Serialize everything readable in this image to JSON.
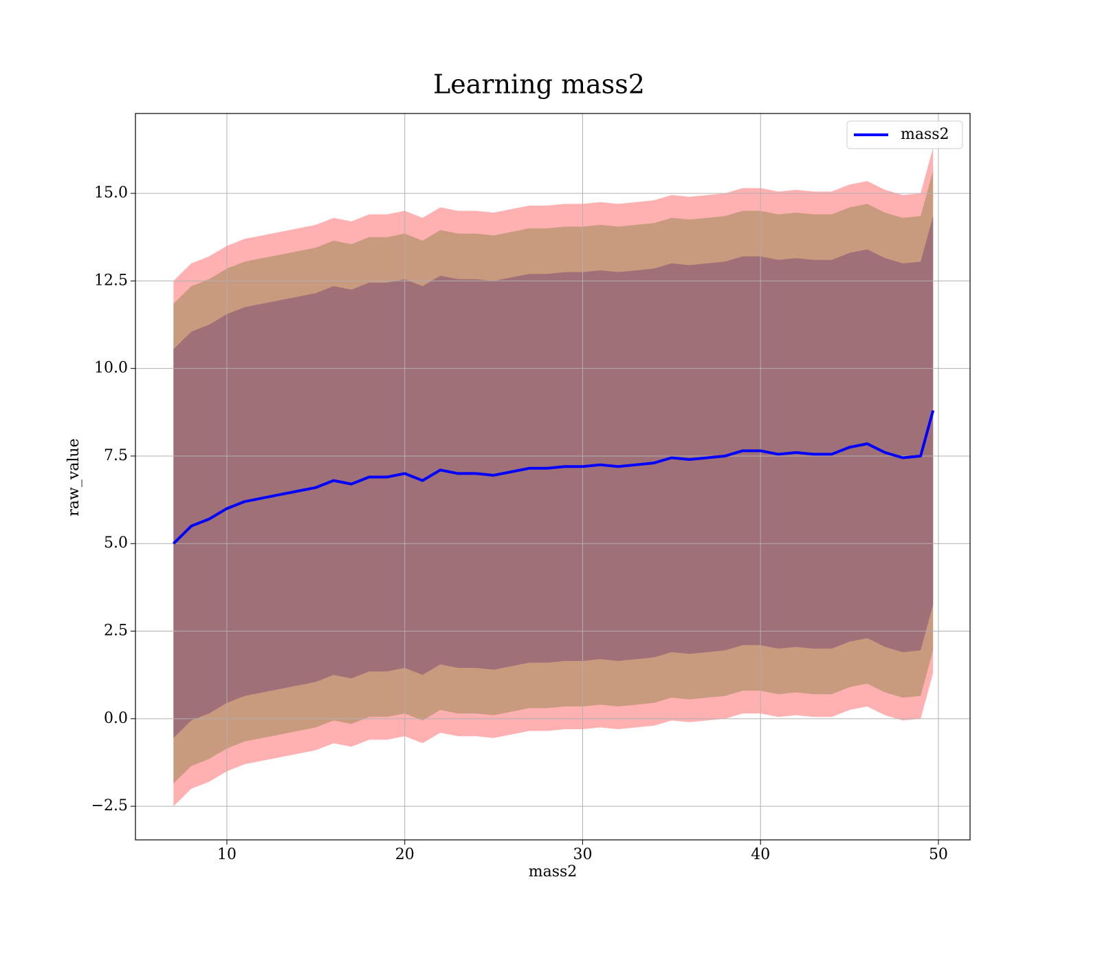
{
  "chart_data": {
    "type": "line",
    "title": "Learning mass2",
    "xlabel": "mass2",
    "ylabel": "raw_value",
    "x": [
      7,
      8,
      9,
      10,
      11,
      12,
      13,
      14,
      15,
      16,
      17,
      18,
      19,
      20,
      21,
      22,
      23,
      24,
      25,
      26,
      27,
      28,
      29,
      30,
      31,
      32,
      33,
      34,
      35,
      36,
      37,
      38,
      39,
      40,
      41,
      42,
      43,
      44,
      45,
      46,
      47,
      48,
      49,
      49.7
    ],
    "series": [
      {
        "name": "mass2",
        "color": "#0000ff",
        "values": [
          5.0,
          5.5,
          5.7,
          6.0,
          6.2,
          6.3,
          6.4,
          6.5,
          6.6,
          6.8,
          6.7,
          6.9,
          6.9,
          7.0,
          6.8,
          7.1,
          7.0,
          7.0,
          6.95,
          7.05,
          7.15,
          7.15,
          7.2,
          7.2,
          7.25,
          7.2,
          7.25,
          7.3,
          7.45,
          7.4,
          7.45,
          7.5,
          7.65,
          7.65,
          7.55,
          7.6,
          7.55,
          7.55,
          7.75,
          7.85,
          7.6,
          7.45,
          7.5,
          8.8
        ]
      }
    ],
    "bands": [
      {
        "color": "#ffb0b0",
        "upper": [
          12.5,
          13.0,
          13.2,
          13.5,
          13.7,
          13.8,
          13.9,
          14.0,
          14.1,
          14.3,
          14.2,
          14.4,
          14.4,
          14.5,
          14.3,
          14.6,
          14.5,
          14.5,
          14.45,
          14.55,
          14.65,
          14.65,
          14.7,
          14.7,
          14.75,
          14.7,
          14.75,
          14.8,
          14.95,
          14.9,
          14.95,
          15.0,
          15.15,
          15.15,
          15.05,
          15.1,
          15.05,
          15.05,
          15.25,
          15.35,
          15.1,
          14.95,
          15.0,
          16.3
        ],
        "lower": [
          -2.5,
          -2.0,
          -1.8,
          -1.5,
          -1.3,
          -1.2,
          -1.1,
          -1.0,
          -0.9,
          -0.7,
          -0.8,
          -0.6,
          -0.6,
          -0.5,
          -0.7,
          -0.4,
          -0.5,
          -0.5,
          -0.55,
          -0.45,
          -0.35,
          -0.35,
          -0.3,
          -0.3,
          -0.25,
          -0.3,
          -0.25,
          -0.2,
          -0.05,
          -0.1,
          -0.05,
          0.0,
          0.15,
          0.15,
          0.05,
          0.1,
          0.05,
          0.05,
          0.25,
          0.35,
          0.1,
          -0.05,
          0.0,
          1.3
        ]
      },
      {
        "color": "#c89a7e",
        "upper": [
          11.85,
          12.35,
          12.55,
          12.85,
          13.05,
          13.15,
          13.25,
          13.35,
          13.45,
          13.65,
          13.55,
          13.75,
          13.75,
          13.85,
          13.65,
          13.95,
          13.85,
          13.85,
          13.8,
          13.9,
          14.0,
          14.0,
          14.05,
          14.05,
          14.1,
          14.05,
          14.1,
          14.15,
          14.3,
          14.25,
          14.3,
          14.35,
          14.5,
          14.5,
          14.4,
          14.45,
          14.4,
          14.4,
          14.6,
          14.7,
          14.45,
          14.3,
          14.35,
          15.65
        ],
        "lower": [
          -1.85,
          -1.35,
          -1.15,
          -0.85,
          -0.65,
          -0.55,
          -0.45,
          -0.35,
          -0.25,
          -0.05,
          -0.15,
          0.05,
          0.05,
          0.15,
          -0.05,
          0.25,
          0.15,
          0.15,
          0.1,
          0.2,
          0.3,
          0.3,
          0.35,
          0.35,
          0.4,
          0.35,
          0.4,
          0.45,
          0.6,
          0.55,
          0.6,
          0.65,
          0.8,
          0.8,
          0.7,
          0.75,
          0.7,
          0.7,
          0.9,
          1.0,
          0.75,
          0.6,
          0.65,
          1.95
        ]
      },
      {
        "color": "#a07078",
        "upper": [
          10.55,
          11.05,
          11.25,
          11.55,
          11.75,
          11.85,
          11.95,
          12.05,
          12.15,
          12.35,
          12.25,
          12.45,
          12.45,
          12.55,
          12.35,
          12.65,
          12.55,
          12.55,
          12.5,
          12.6,
          12.7,
          12.7,
          12.75,
          12.75,
          12.8,
          12.75,
          12.8,
          12.85,
          13.0,
          12.95,
          13.0,
          13.05,
          13.2,
          13.2,
          13.1,
          13.15,
          13.1,
          13.1,
          13.3,
          13.4,
          13.15,
          13.0,
          13.05,
          14.35
        ],
        "lower": [
          -0.55,
          -0.05,
          0.15,
          0.45,
          0.65,
          0.75,
          0.85,
          0.95,
          1.05,
          1.25,
          1.15,
          1.35,
          1.35,
          1.45,
          1.25,
          1.55,
          1.45,
          1.45,
          1.4,
          1.5,
          1.6,
          1.6,
          1.65,
          1.65,
          1.7,
          1.65,
          1.7,
          1.75,
          1.9,
          1.85,
          1.9,
          1.95,
          2.1,
          2.1,
          2.0,
          2.05,
          2.0,
          2.0,
          2.2,
          2.3,
          2.05,
          1.9,
          1.95,
          3.25
        ]
      }
    ],
    "xlim": [
      4.86,
      51.78
    ],
    "ylim": [
      -3.46,
      17.28
    ],
    "xticks": [
      10,
      20,
      30,
      40,
      50
    ],
    "yticks": [
      {
        "value": -2.5,
        "label": "−2.5"
      },
      {
        "value": 0,
        "label": "0.0"
      },
      2.5,
      {
        "value": 5,
        "label": "5.0"
      },
      7.5,
      {
        "value": 10,
        "label": "10.0"
      },
      12.5,
      {
        "value": 15,
        "label": "15.0"
      }
    ],
    "grid": true,
    "legend": "upper right"
  }
}
